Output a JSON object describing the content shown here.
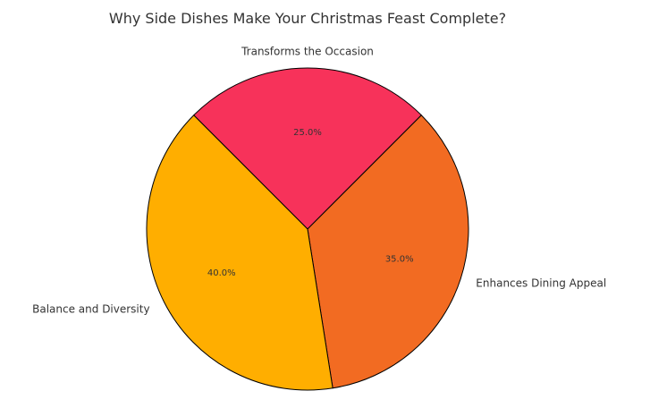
{
  "chart_data": {
    "type": "pie",
    "title": "Why Side Dishes Make Your Christmas Feast Complete?",
    "slices": [
      {
        "label": "Transforms the Occasion",
        "value": 25.0,
        "pct_label": "25.0%",
        "color": "#F7325A"
      },
      {
        "label": "Enhances Dining Appeal",
        "value": 35.0,
        "pct_label": "35.0%",
        "color": "#F26B22"
      },
      {
        "label": "Balance and Diversity",
        "value": 40.0,
        "pct_label": "40.0%",
        "color": "#FFAE00"
      }
    ],
    "start_angle_deg": 135,
    "direction": "clockwise",
    "edge_color": "#000000"
  }
}
